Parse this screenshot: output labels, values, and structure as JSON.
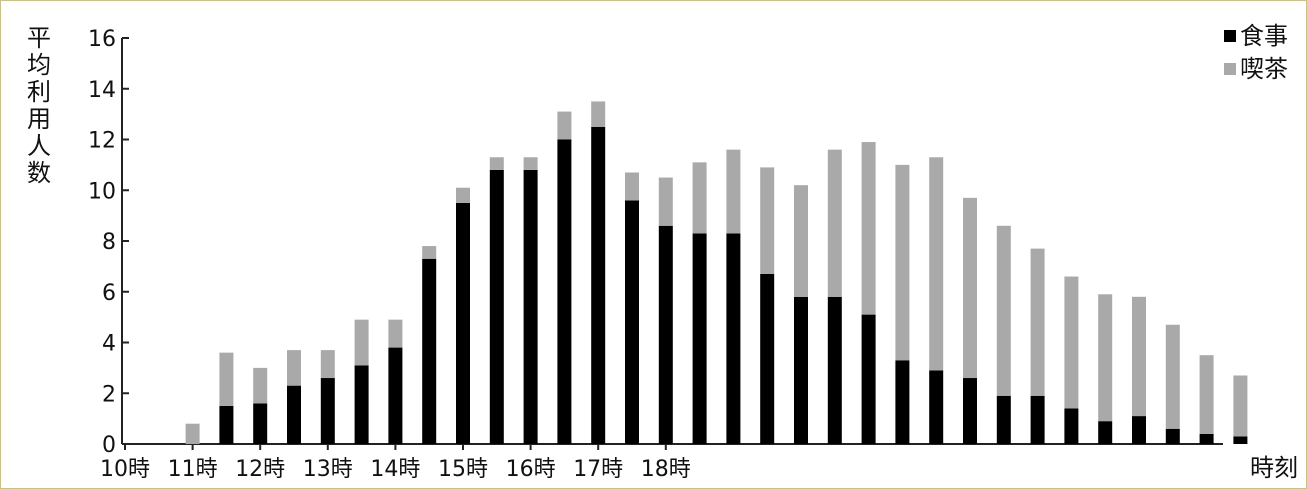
{
  "chart_data": {
    "type": "bar",
    "stacked": true,
    "ylabel": "平均利用人数",
    "xlabel": "時刻",
    "ylim": [
      0,
      16
    ],
    "yticks": [
      0,
      2,
      4,
      6,
      8,
      10,
      12,
      14,
      16
    ],
    "hour_labels": [
      "10時",
      "11時",
      "12時",
      "13時",
      "14時",
      "15時",
      "16時",
      "17時",
      "18時"
    ],
    "legend_position": "top-right",
    "x_interval_minutes": 30,
    "series": [
      {
        "name": "食事",
        "color": "#000000",
        "values": [
          0,
          0,
          1.5,
          1.6,
          2.3,
          2.6,
          3.1,
          3.8,
          7.3,
          9.5,
          10.8,
          10.8,
          12.0,
          12.5,
          9.6,
          8.6,
          8.3,
          8.3,
          6.7,
          5.8,
          5.8,
          5.1,
          3.3,
          2.9,
          2.6,
          1.9,
          1.9,
          1.4,
          0.9,
          1.1,
          0.6,
          0.4,
          0.3
        ]
      },
      {
        "name": "喫茶",
        "color": "#a9a9a9",
        "values": [
          0,
          0.8,
          2.1,
          1.4,
          1.4,
          1.1,
          1.8,
          1.1,
          0.5,
          0.6,
          0.5,
          0.5,
          1.1,
          1.0,
          1.1,
          1.9,
          2.8,
          3.3,
          4.2,
          4.4,
          5.8,
          6.8,
          7.7,
          8.4,
          7.1,
          6.7,
          5.8,
          5.2,
          5.0,
          4.7,
          4.1,
          3.1,
          2.4
        ]
      }
    ]
  }
}
